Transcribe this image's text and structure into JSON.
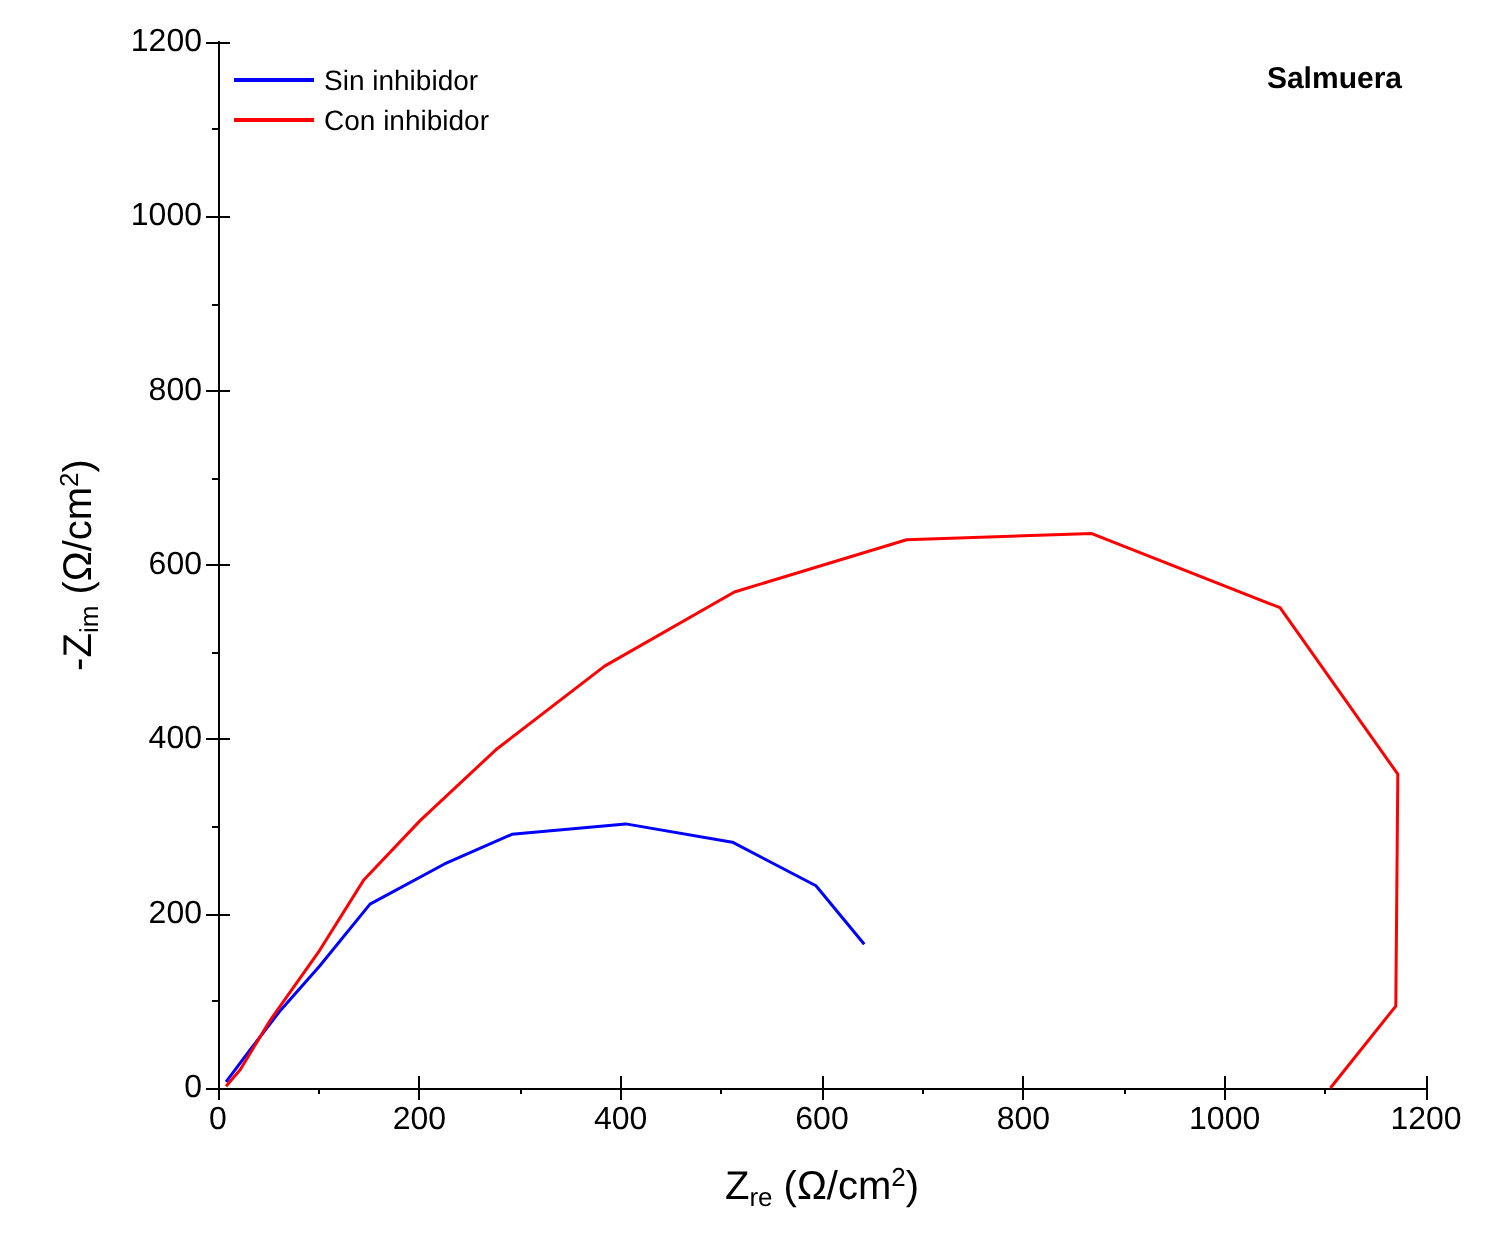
{
  "chart_data": {
    "type": "line",
    "xlabel": "Z$_{re}$ (Ω/cm$^{2}$)",
    "ylabel": "-Z$_{im}$ (Ω/cm$^{2}$)",
    "annotations": [
      "Salmuera"
    ],
    "xlim": [
      0,
      1200
    ],
    "xticks": [
      0,
      200,
      400,
      600,
      800,
      1000,
      1200
    ],
    "ylim": [
      0,
      1200
    ],
    "yticks": [
      0,
      200,
      400,
      600,
      800,
      1000,
      1200
    ],
    "legend": "top left",
    "marker": "none",
    "line_style": "solid",
    "series": [
      {
        "name": "Sin inhibidor",
        "color": "#0000ff",
        "x": [
          8,
          32,
          62,
          101,
          151,
          225,
          292,
          405,
          511,
          594,
          642
        ],
        "values": [
          7,
          44,
          89,
          140,
          211,
          257,
          291,
          303,
          282,
          232,
          165
        ]
      },
      {
        "name": "Con inhibidor",
        "color": "#ff0000",
        "x": [
          8,
          22,
          52,
          101,
          145,
          201,
          276,
          384,
          513,
          684,
          868,
          1055,
          1172,
          1170,
          1105
        ],
        "values": [
          2,
          21,
          78,
          158,
          239,
          307,
          388,
          484,
          569,
          629,
          636,
          551,
          360,
          94,
          0
        ]
      }
    ]
  }
}
